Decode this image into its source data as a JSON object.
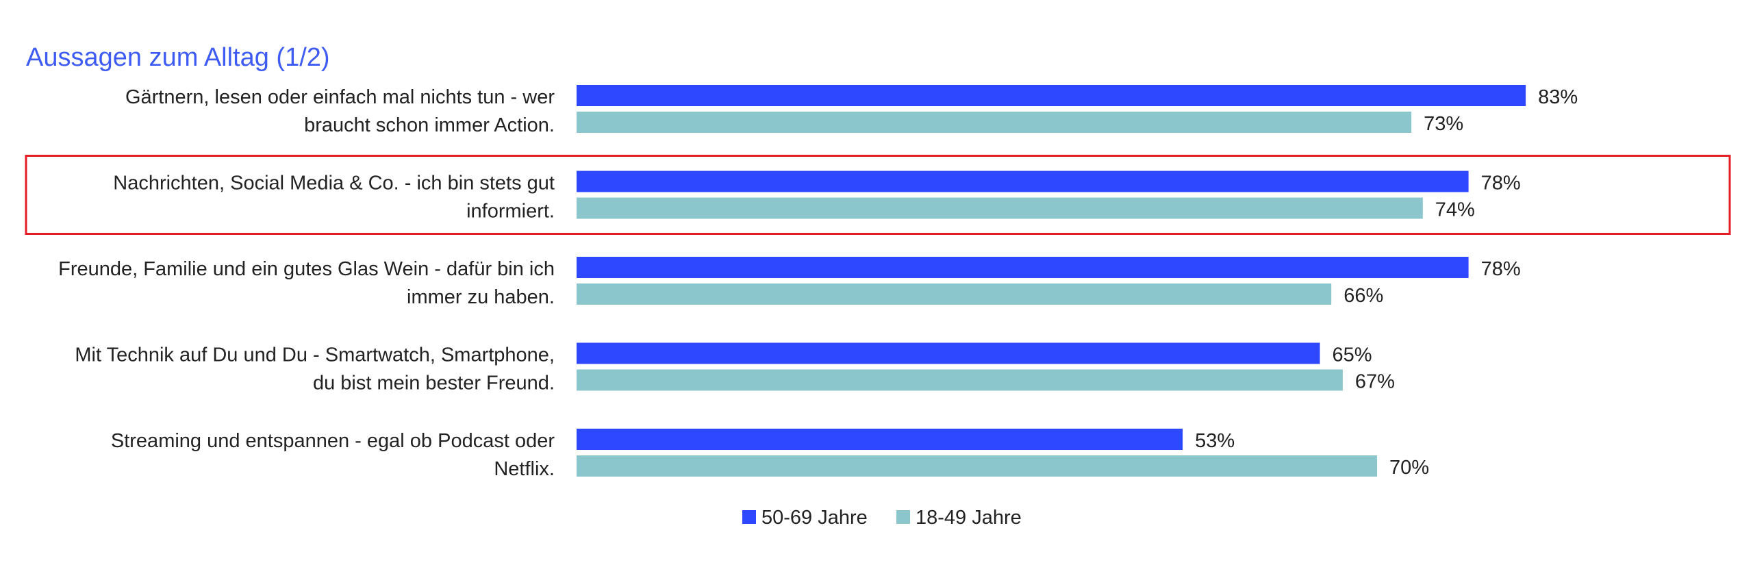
{
  "chart_data": {
    "type": "bar",
    "orientation": "horizontal",
    "title": "Aussagen zum Alltag (1/2)",
    "categories": [
      [
        "Gärtnern, lesen oder einfach mal nichts tun - wer",
        "braucht schon immer Action."
      ],
      [
        "Nachrichten, Social Media & Co. - ich bin stets gut",
        "informiert."
      ],
      [
        "Freunde, Familie und ein gutes Glas Wein - dafür bin ich",
        "immer zu haben."
      ],
      [
        "Mit Technik auf Du und Du - Smartwatch, Smartphone,",
        "du bist mein bester Freund."
      ],
      [
        "Streaming und entspannen - egal ob Podcast oder",
        "Netflix."
      ]
    ],
    "series": [
      {
        "name": "50-69 Jahre",
        "color": "#2e48ff",
        "values": [
          83,
          78,
          78,
          65,
          53
        ]
      },
      {
        "name": "18-49 Jahre",
        "color": "#8bc6cd",
        "values": [
          73,
          74,
          66,
          67,
          70
        ]
      }
    ],
    "value_suffix": "%",
    "xlim": [
      0,
      100
    ],
    "legend_position": "bottom",
    "highlighted_category_index": 1,
    "highlight_color": "#e41e26",
    "title_color": "#3e5cf3",
    "grid": false
  }
}
